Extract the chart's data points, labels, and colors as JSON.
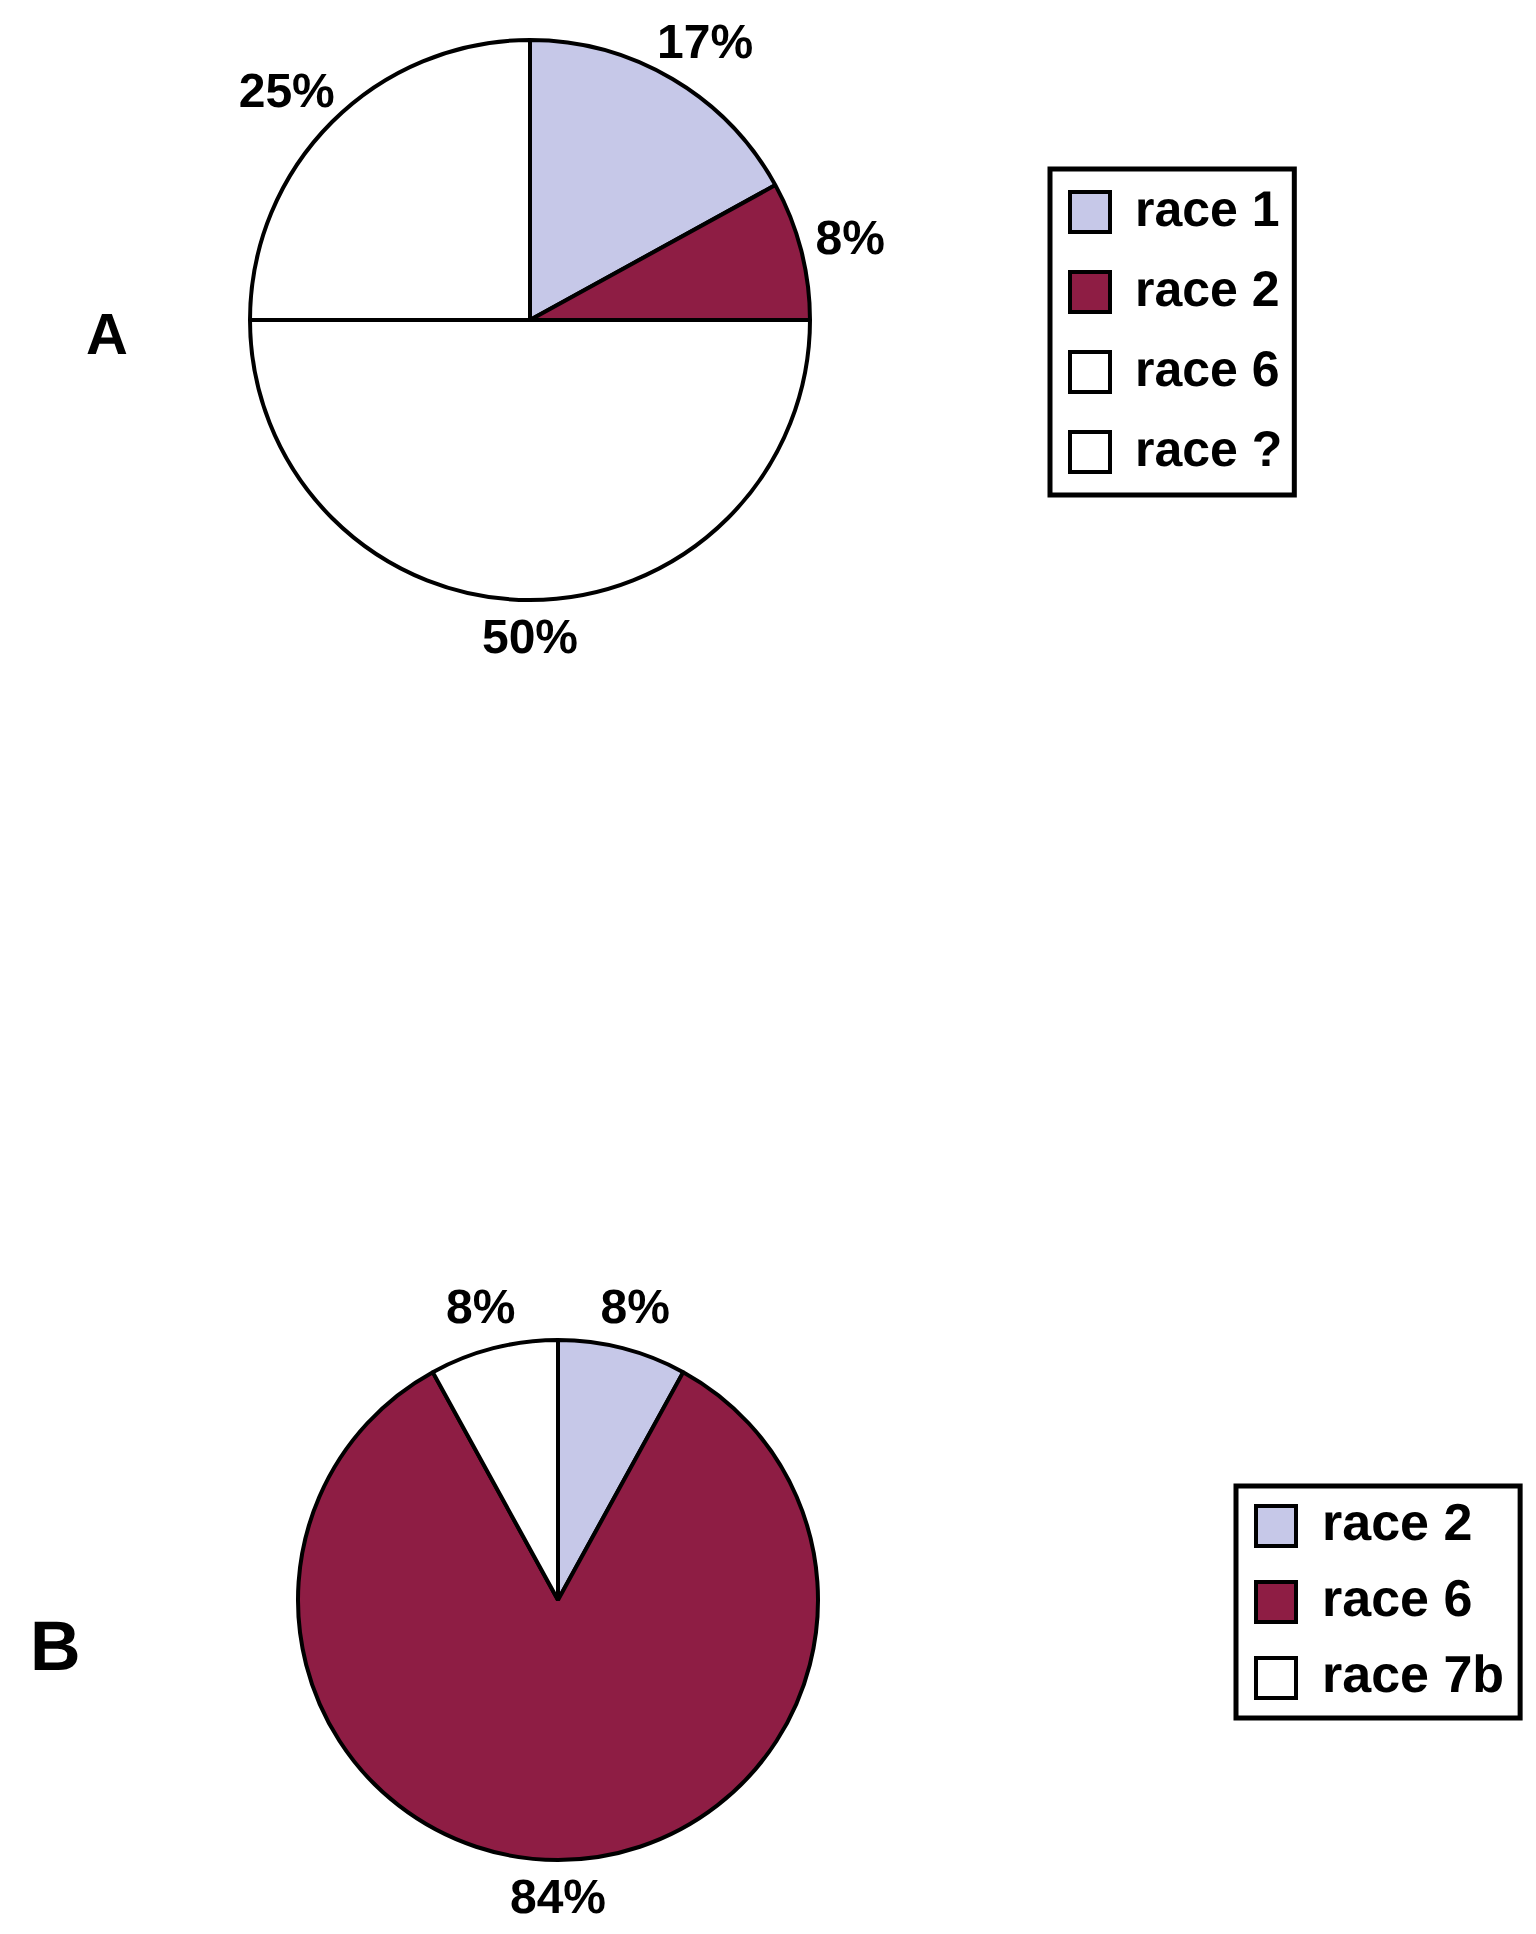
{
  "chart_data": [
    {
      "type": "pie",
      "title": "A",
      "categories": [
        "race 1",
        "race 2",
        "race 6",
        "race ?"
      ],
      "values": [
        17,
        8,
        50,
        25
      ],
      "colors": [
        "#c6c8e8",
        "#8e1d44",
        "#ffffff",
        "#ffffff"
      ],
      "value_labels": [
        "17%",
        "8%",
        "50%",
        "25%"
      ],
      "legend": "right"
    },
    {
      "type": "pie",
      "title": "B",
      "categories": [
        "race 2",
        "race 6",
        "race 7b"
      ],
      "values": [
        8,
        84,
        8
      ],
      "colors": [
        "#c6c8e8",
        "#8e1d44",
        "#ffffff"
      ],
      "value_labels": [
        "8%",
        "84%",
        "8%"
      ],
      "legend": "right"
    }
  ]
}
